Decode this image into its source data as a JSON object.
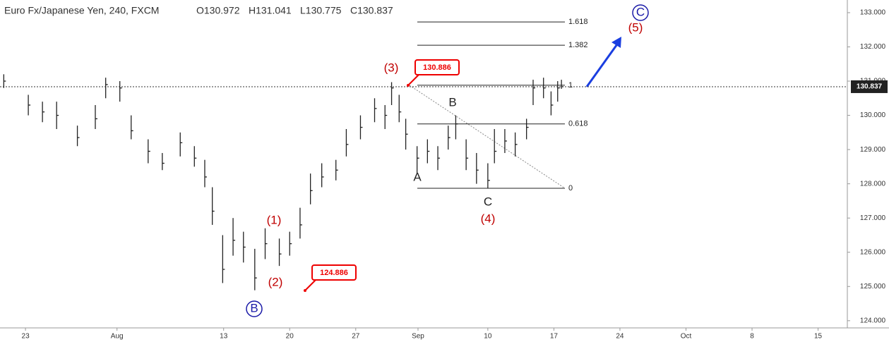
{
  "chart_data": {
    "type": "ohlc",
    "title": "Euro Fx/Japanese Yen, 240, FXCM",
    "ohlc_header": [
      "O130.972",
      "H131.041",
      "L130.775",
      "C130.837"
    ],
    "x": [
      -2.3,
      0.3,
      1.8,
      3.3,
      5.5,
      7.4,
      8.5,
      10.0,
      11.2,
      13.0,
      14.5,
      16.4,
      17.9,
      19.0,
      19.8,
      20.9,
      22.0,
      23.1,
      24.3,
      25.4,
      26.9,
      28.0,
      29.1,
      30.2,
      31.4,
      32.9,
      34.0,
      35.5,
      37.0,
      38.1,
      38.8,
      39.6,
      40.3,
      41.5,
      42.6,
      43.7,
      44.8,
      45.6,
      46.7,
      47.8,
      49.0,
      49.7,
      50.8,
      51.9,
      53.1,
      53.8,
      54.9,
      55.7,
      56.4,
      56.8
    ],
    "high": [
      131.2,
      130.6,
      130.4,
      130.4,
      129.7,
      130.3,
      131.1,
      131.0,
      130.0,
      129.3,
      128.9,
      129.5,
      129.1,
      128.7,
      127.9,
      126.5,
      127.0,
      126.6,
      126.1,
      126.7,
      126.4,
      126.6,
      127.3,
      128.3,
      128.6,
      128.7,
      129.6,
      130.0,
      130.5,
      130.3,
      130.97,
      130.6,
      129.9,
      129.1,
      129.3,
      129.1,
      129.7,
      130.0,
      129.3,
      128.9,
      128.6,
      129.6,
      129.6,
      129.5,
      129.9,
      131.04,
      131.1,
      130.7,
      131.0,
      131.04
    ],
    "low": [
      130.8,
      130.0,
      129.8,
      129.6,
      129.1,
      129.6,
      130.5,
      130.4,
      129.3,
      128.6,
      128.4,
      128.8,
      128.5,
      127.9,
      126.8,
      125.1,
      125.9,
      125.7,
      124.89,
      125.8,
      125.6,
      125.9,
      126.4,
      127.4,
      127.9,
      128.1,
      128.8,
      129.3,
      129.8,
      129.6,
      130.3,
      129.8,
      129.0,
      128.3,
      128.6,
      128.4,
      129.0,
      129.3,
      128.4,
      128.0,
      127.87,
      128.6,
      128.9,
      128.8,
      129.3,
      130.3,
      130.5,
      130.0,
      130.4,
      130.775
    ],
    "close": [
      131.0,
      130.3,
      130.1,
      130.0,
      129.35,
      129.9,
      130.9,
      130.8,
      129.55,
      128.95,
      128.6,
      129.2,
      128.75,
      128.2,
      127.2,
      125.5,
      126.35,
      126.15,
      125.25,
      126.25,
      125.95,
      126.25,
      126.8,
      127.8,
      128.2,
      128.4,
      129.15,
      129.65,
      130.2,
      130.0,
      130.8,
      130.1,
      129.45,
      128.75,
      128.95,
      128.75,
      129.35,
      129.75,
      128.75,
      128.4,
      128.1,
      128.95,
      129.25,
      129.15,
      129.65,
      130.8,
      130.8,
      130.3,
      130.8,
      130.837
    ],
    "color": "#222222",
    "xlim": [
      -2.7,
      87.1
    ],
    "ylim": [
      123.79,
      133.37
    ],
    "xticks": [
      {
        "value": 0,
        "label": "23"
      },
      {
        "value": 9.7,
        "label": "Aug"
      },
      {
        "value": 21,
        "label": "13"
      },
      {
        "value": 28,
        "label": "20"
      },
      {
        "value": 35,
        "label": "27"
      },
      {
        "value": 41.6,
        "label": "Sep"
      },
      {
        "value": 49,
        "label": "10"
      },
      {
        "value": 56,
        "label": "17"
      },
      {
        "value": 63,
        "label": "24"
      },
      {
        "value": 70,
        "label": "Oct"
      },
      {
        "value": 77,
        "label": "8"
      },
      {
        "value": 84,
        "label": "15"
      }
    ],
    "yticks": [
      {
        "value": 124,
        "label": "124.000"
      },
      {
        "value": 125,
        "label": "125.000"
      },
      {
        "value": 126,
        "label": "126.000"
      },
      {
        "value": 127,
        "label": "127.000"
      },
      {
        "value": 128,
        "label": "128.000"
      },
      {
        "value": 129,
        "label": "129.000"
      },
      {
        "value": 130,
        "label": "130.000"
      },
      {
        "value": 131,
        "label": "131.000"
      },
      {
        "value": 132,
        "label": "132.000"
      },
      {
        "value": 133,
        "label": "133.000"
      }
    ],
    "grid": false,
    "last_price": 130.837,
    "fib_levels": [
      {
        "value": 132.73,
        "label": "1.618"
      },
      {
        "value": 132.05,
        "label": "1.382"
      },
      {
        "value": 130.88,
        "label": "1"
      },
      {
        "value": 129.75,
        "label": "0.618"
      },
      {
        "value": 127.87,
        "label": "0"
      }
    ],
    "wave_labels": [
      "(1)",
      "(2)",
      "(3)",
      "(4)",
      "(5)",
      "A",
      "B",
      "C",
      "B",
      "C"
    ],
    "price_tags": [
      "130.886",
      "124.886"
    ]
  }
}
